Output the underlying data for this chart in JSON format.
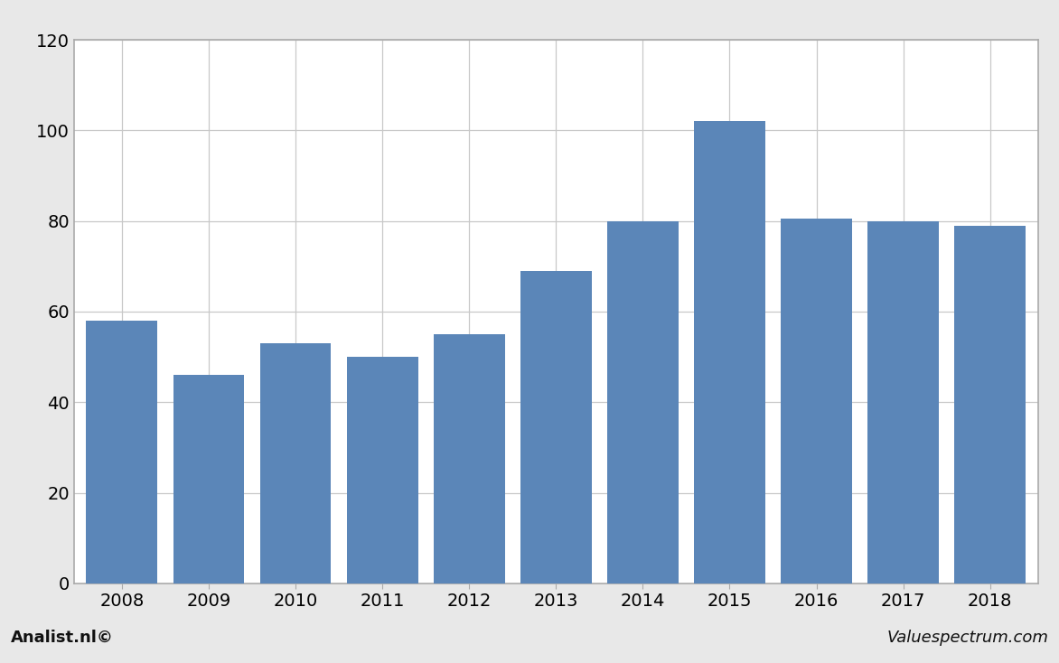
{
  "years": [
    2008,
    2009,
    2010,
    2011,
    2012,
    2013,
    2014,
    2015,
    2016,
    2017,
    2018
  ],
  "values": [
    58,
    46,
    53,
    50,
    55,
    69,
    80,
    102,
    80.5,
    80,
    79
  ],
  "bar_color": "#5b86b8",
  "background_color": "#e8e8e8",
  "plot_bg_color": "#ffffff",
  "grid_color": "#c8c8c8",
  "ylim": [
    0,
    120
  ],
  "yticks": [
    0,
    20,
    40,
    60,
    80,
    100,
    120
  ],
  "tick_fontsize": 14,
  "footer_left": "Analist.nl©",
  "footer_right": "Valuespectrum.com",
  "footer_fontsize": 13,
  "border_color": "#aaaaaa",
  "bar_width": 0.82
}
